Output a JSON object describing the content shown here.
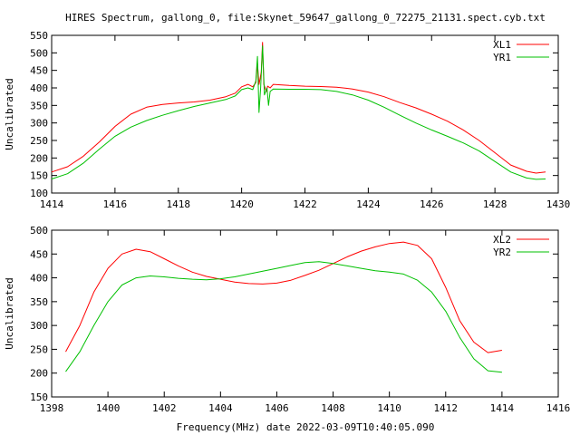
{
  "title": "HIRES Spectrum, gallong_0, file:Skynet_59647_gallong_0_72275_21131.spect.cyb.txt",
  "xlabel": "Frequency(MHz) date 2022-03-09T10:40:05.090",
  "colors": {
    "red": "#ff0000",
    "green": "#00c000",
    "axis": "#000000",
    "background": "#ffffff"
  },
  "chart_data": [
    {
      "type": "line",
      "title": "HIRES Spectrum, gallong_0, file:Skynet_59647_gallong_0_72275_21131.spect.cyb.txt",
      "xlabel": "",
      "ylabel": "Uncalibrated",
      "xlim": [
        1414,
        1430
      ],
      "ylim": [
        100,
        550
      ],
      "xticks": [
        1414,
        1416,
        1418,
        1420,
        1422,
        1424,
        1426,
        1428,
        1430
      ],
      "yticks": [
        100,
        150,
        200,
        250,
        300,
        350,
        400,
        450,
        500,
        550
      ],
      "grid": false,
      "legend": "top-right",
      "series": [
        {
          "name": "XL1",
          "color": "#ff0000",
          "points": [
            [
              1414.0,
              160
            ],
            [
              1414.5,
              175
            ],
            [
              1415.0,
              205
            ],
            [
              1415.5,
              245
            ],
            [
              1416.0,
              290
            ],
            [
              1416.5,
              325
            ],
            [
              1417.0,
              345
            ],
            [
              1417.5,
              353
            ],
            [
              1418.0,
              357
            ],
            [
              1418.5,
              360
            ],
            [
              1419.0,
              365
            ],
            [
              1419.5,
              375
            ],
            [
              1419.8,
              385
            ],
            [
              1420.0,
              403
            ],
            [
              1420.2,
              410
            ],
            [
              1420.35,
              403
            ],
            [
              1420.45,
              415
            ],
            [
              1420.5,
              470
            ],
            [
              1420.55,
              410
            ],
            [
              1420.62,
              445
            ],
            [
              1420.66,
              530
            ],
            [
              1420.7,
              410
            ],
            [
              1420.78,
              390
            ],
            [
              1420.82,
              405
            ],
            [
              1420.9,
              400
            ],
            [
              1421.0,
              410
            ],
            [
              1421.5,
              407
            ],
            [
              1422.0,
              405
            ],
            [
              1422.5,
              404
            ],
            [
              1423.0,
              402
            ],
            [
              1423.5,
              397
            ],
            [
              1424.0,
              388
            ],
            [
              1424.5,
              375
            ],
            [
              1425.0,
              358
            ],
            [
              1425.5,
              343
            ],
            [
              1426.0,
              325
            ],
            [
              1426.5,
              305
            ],
            [
              1427.0,
              280
            ],
            [
              1427.5,
              250
            ],
            [
              1428.0,
              215
            ],
            [
              1428.5,
              180
            ],
            [
              1429.0,
              162
            ],
            [
              1429.3,
              157
            ],
            [
              1429.6,
              160
            ]
          ]
        },
        {
          "name": "YR1",
          "color": "#00c000",
          "points": [
            [
              1414.0,
              140
            ],
            [
              1414.5,
              155
            ],
            [
              1415.0,
              185
            ],
            [
              1415.5,
              225
            ],
            [
              1416.0,
              262
            ],
            [
              1416.5,
              288
            ],
            [
              1417.0,
              307
            ],
            [
              1417.5,
              322
            ],
            [
              1418.0,
              335
            ],
            [
              1418.5,
              347
            ],
            [
              1419.0,
              357
            ],
            [
              1419.5,
              367
            ],
            [
              1419.8,
              377
            ],
            [
              1420.0,
              395
            ],
            [
              1420.2,
              400
            ],
            [
              1420.35,
              395
            ],
            [
              1420.45,
              420
            ],
            [
              1420.5,
              490
            ],
            [
              1420.55,
              330
            ],
            [
              1420.6,
              400
            ],
            [
              1420.66,
              520
            ],
            [
              1420.72,
              380
            ],
            [
              1420.8,
              400
            ],
            [
              1420.85,
              350
            ],
            [
              1420.9,
              390
            ],
            [
              1421.0,
              397
            ],
            [
              1421.5,
              396
            ],
            [
              1422.0,
              396
            ],
            [
              1422.5,
              395
            ],
            [
              1423.0,
              390
            ],
            [
              1423.5,
              380
            ],
            [
              1424.0,
              365
            ],
            [
              1424.5,
              345
            ],
            [
              1425.0,
              322
            ],
            [
              1425.5,
              300
            ],
            [
              1426.0,
              280
            ],
            [
              1426.5,
              262
            ],
            [
              1427.0,
              243
            ],
            [
              1427.5,
              220
            ],
            [
              1428.0,
              190
            ],
            [
              1428.5,
              160
            ],
            [
              1429.0,
              143
            ],
            [
              1429.3,
              139
            ],
            [
              1429.6,
              140
            ]
          ]
        }
      ]
    },
    {
      "type": "line",
      "xlabel": "Frequency(MHz) date 2022-03-09T10:40:05.090",
      "ylabel": "Uncalibrated",
      "xlim": [
        1398,
        1416
      ],
      "ylim": [
        150,
        500
      ],
      "xticks": [
        1398,
        1400,
        1402,
        1404,
        1406,
        1408,
        1410,
        1412,
        1414,
        1416
      ],
      "yticks": [
        150,
        200,
        250,
        300,
        350,
        400,
        450,
        500
      ],
      "grid": false,
      "legend": "top-right",
      "series": [
        {
          "name": "XL2",
          "color": "#ff0000",
          "points": [
            [
              1398.5,
              245
            ],
            [
              1399.0,
              300
            ],
            [
              1399.5,
              370
            ],
            [
              1400.0,
              420
            ],
            [
              1400.5,
              450
            ],
            [
              1401.0,
              460
            ],
            [
              1401.5,
              455
            ],
            [
              1402.0,
              440
            ],
            [
              1402.5,
              425
            ],
            [
              1403.0,
              412
            ],
            [
              1403.5,
              403
            ],
            [
              1404.0,
              397
            ],
            [
              1404.5,
              391
            ],
            [
              1405.0,
              388
            ],
            [
              1405.5,
              387
            ],
            [
              1406.0,
              389
            ],
            [
              1406.5,
              395
            ],
            [
              1407.0,
              405
            ],
            [
              1407.5,
              416
            ],
            [
              1408.0,
              430
            ],
            [
              1408.5,
              444
            ],
            [
              1409.0,
              456
            ],
            [
              1409.5,
              465
            ],
            [
              1410.0,
              472
            ],
            [
              1410.5,
              475
            ],
            [
              1411.0,
              468
            ],
            [
              1411.5,
              440
            ],
            [
              1412.0,
              380
            ],
            [
              1412.5,
              310
            ],
            [
              1413.0,
              265
            ],
            [
              1413.5,
              243
            ],
            [
              1414.0,
              248
            ]
          ]
        },
        {
          "name": "YR2",
          "color": "#00c000",
          "points": [
            [
              1398.5,
              203
            ],
            [
              1399.0,
              245
            ],
            [
              1399.5,
              300
            ],
            [
              1400.0,
              350
            ],
            [
              1400.5,
              385
            ],
            [
              1401.0,
              400
            ],
            [
              1401.5,
              404
            ],
            [
              1402.0,
              402
            ],
            [
              1402.5,
              399
            ],
            [
              1403.0,
              397
            ],
            [
              1403.5,
              396
            ],
            [
              1404.0,
              398
            ],
            [
              1404.5,
              402
            ],
            [
              1405.0,
              408
            ],
            [
              1405.5,
              414
            ],
            [
              1406.0,
              420
            ],
            [
              1406.5,
              426
            ],
            [
              1407.0,
              432
            ],
            [
              1407.5,
              434
            ],
            [
              1408.0,
              430
            ],
            [
              1408.5,
              425
            ],
            [
              1409.0,
              420
            ],
            [
              1409.5,
              415
            ],
            [
              1410.0,
              412
            ],
            [
              1410.5,
              408
            ],
            [
              1411.0,
              395
            ],
            [
              1411.5,
              370
            ],
            [
              1412.0,
              330
            ],
            [
              1412.5,
              275
            ],
            [
              1413.0,
              230
            ],
            [
              1413.5,
              205
            ],
            [
              1414.0,
              202
            ]
          ]
        }
      ]
    }
  ]
}
